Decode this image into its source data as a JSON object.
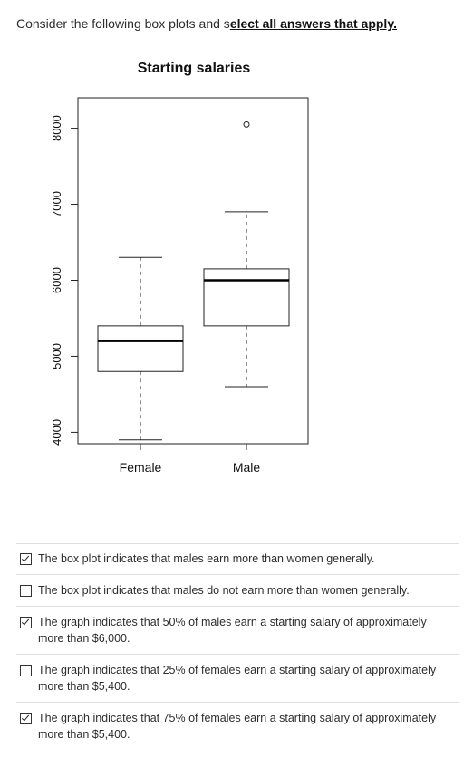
{
  "prompt": {
    "prefix": "Consider the following box plots and s",
    "emphasis": "elect all answers that apply."
  },
  "chart_data": {
    "type": "box",
    "title": "Starting salaries",
    "categories": [
      "Female",
      "Male"
    ],
    "y_ticks": [
      "4000",
      "5000",
      "6000",
      "7000",
      "8000"
    ],
    "ylim": [
      3850,
      8400
    ],
    "boxes": [
      {
        "category": "Female",
        "whisker_low": 3900,
        "q1": 4800,
        "median": 5200,
        "q3": 5400,
        "whisker_high": 6300,
        "outliers": []
      },
      {
        "category": "Male",
        "whisker_low": 4600,
        "q1": 5400,
        "median": 6000,
        "q3": 6150,
        "whisker_high": 6900,
        "outliers": [
          8050
        ]
      }
    ],
    "grid": false,
    "legend": "none"
  },
  "answers": [
    {
      "text": "The box plot indicates that males earn more than women generally.",
      "checked": true
    },
    {
      "text": "The box plot indicates that males do not earn more than women generally.",
      "checked": false
    },
    {
      "text": "The graph indicates that 50% of males earn a starting salary of approximately more than $6,000.",
      "checked": true
    },
    {
      "text": "The graph indicates that 25% of females earn a starting salary of approximately more than $5,400.",
      "checked": false
    },
    {
      "text": "The graph indicates that 75% of females earn a starting salary of approximately more than $5,400.",
      "checked": true
    }
  ]
}
